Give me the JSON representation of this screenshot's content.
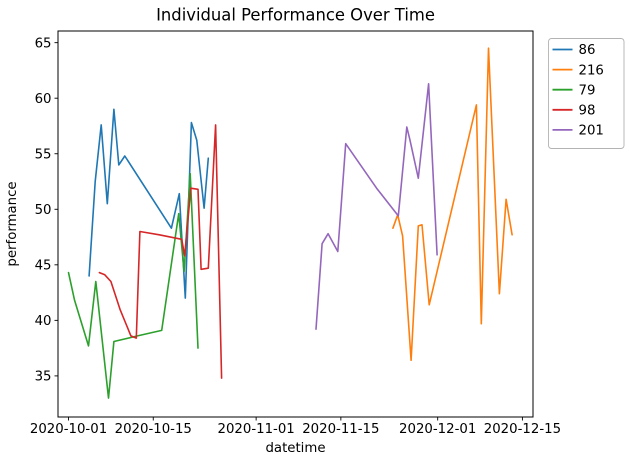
{
  "title": "Individual Performance Over Time",
  "chart_data": {
    "type": "line",
    "title": "Individual Performance Over Time",
    "xlabel": "datetime",
    "ylabel": "performance",
    "x_unit": "days since 2020-10-01",
    "xlim_days": [
      -1.74,
      76.75
    ],
    "ylim": [
      31.3,
      66.05
    ],
    "grid": false,
    "legend_position": "outside upper right",
    "x_ticks": [
      {
        "day": 0,
        "label": "2020-10-01"
      },
      {
        "day": 14,
        "label": "2020-10-15"
      },
      {
        "day": 31,
        "label": "2020-11-01"
      },
      {
        "day": 45,
        "label": "2020-11-15"
      },
      {
        "day": 61,
        "label": "2020-12-01"
      },
      {
        "day": 75,
        "label": "2020-12-15"
      }
    ],
    "y_ticks": [
      35,
      40,
      45,
      50,
      55,
      60,
      65
    ],
    "series": [
      {
        "name": "86",
        "color": "#1f77b4",
        "x": [
          3.4,
          4.4,
          5.4,
          6.4,
          7.5,
          8.3,
          9.3,
          17.0,
          18.3,
          19.3,
          20.3,
          21.2,
          22.4,
          23.1
        ],
        "y": [
          44.0,
          52.5,
          57.6,
          50.5,
          59.0,
          54.0,
          54.8,
          48.3,
          51.4,
          42.0,
          57.8,
          56.2,
          50.1,
          54.6
        ]
      },
      {
        "name": "216",
        "color": "#ff7f0e",
        "x": [
          53.6,
          54.4,
          55.2,
          56.6,
          57.8,
          58.4,
          59.6,
          67.4,
          68.2,
          69.4,
          71.2,
          72.3,
          73.3
        ],
        "y": [
          48.3,
          49.5,
          47.6,
          36.4,
          48.5,
          48.6,
          41.4,
          59.4,
          39.7,
          64.5,
          42.4,
          50.9,
          47.7
        ]
      },
      {
        "name": "79",
        "color": "#2ca02c",
        "x": [
          0.0,
          1.0,
          3.3,
          4.5,
          6.6,
          7.5,
          11.4,
          15.4,
          18.2,
          19.1,
          20.1,
          21.4
        ],
        "y": [
          44.3,
          41.8,
          37.7,
          43.5,
          33.0,
          38.1,
          38.6,
          39.1,
          49.6,
          44.4,
          53.2,
          37.5
        ]
      },
      {
        "name": "98",
        "color": "#d62728",
        "x": [
          5.1,
          6.0,
          7.0,
          8.5,
          10.3,
          11.2,
          11.8,
          15.0,
          18.7,
          19.2,
          20.2,
          21.4,
          21.9,
          23.1,
          24.3,
          25.3
        ],
        "y": [
          44.3,
          44.1,
          43.5,
          41.0,
          38.6,
          38.4,
          48.0,
          47.7,
          47.3,
          45.8,
          51.9,
          51.8,
          44.6,
          44.7,
          57.6,
          34.8
        ]
      },
      {
        "name": "201",
        "color": "#9467bd",
        "x": [
          40.9,
          41.9,
          42.9,
          44.5,
          45.8,
          50.9,
          54.5,
          55.9,
          56.4,
          57.8,
          59.5,
          60.9
        ],
        "y": [
          39.2,
          46.9,
          47.8,
          46.2,
          55.9,
          51.9,
          49.4,
          57.4,
          56.3,
          52.8,
          61.3,
          45.9
        ]
      }
    ]
  }
}
